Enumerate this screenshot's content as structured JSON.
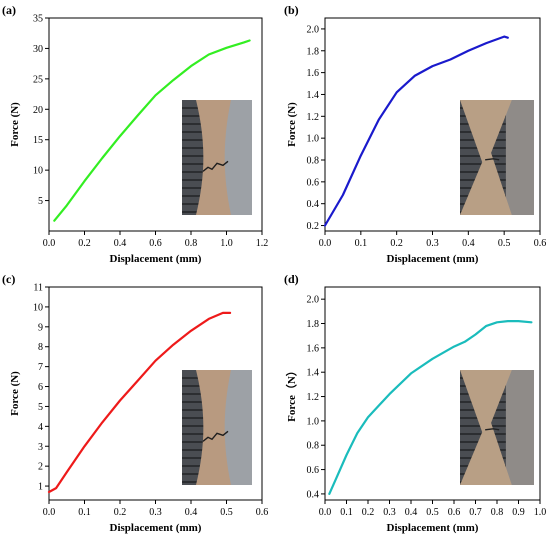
{
  "chart_data": [
    {
      "panel_label": "(a)",
      "type": "line",
      "xlabel": "Displacement (mm)",
      "ylabel": "Force (N)",
      "xlim": [
        0,
        1.2
      ],
      "ylim": [
        0,
        35
      ],
      "xticks": [
        "0.0",
        "0.2",
        "0.4",
        "0.6",
        "0.8",
        "1.0",
        "1.2"
      ],
      "yticks": [
        "5",
        "10",
        "15",
        "20",
        "25",
        "30",
        "35"
      ],
      "grid": false,
      "color": "#33ee22",
      "x": [
        0.03,
        0.1,
        0.2,
        0.3,
        0.4,
        0.5,
        0.6,
        0.7,
        0.8,
        0.9,
        1.0,
        1.1,
        1.13
      ],
      "y": [
        1.7,
        4.2,
        8.2,
        12.0,
        15.6,
        19.0,
        22.3,
        24.8,
        27.1,
        29.0,
        30.1,
        31.0,
        31.3
      ],
      "inset_photo": "fractured strip specimen"
    },
    {
      "panel_label": "(b)",
      "type": "line",
      "xlabel": "Displacement (mm)",
      "ylabel": "Force (N)",
      "xlim": [
        0,
        0.6
      ],
      "ylim": [
        0.15,
        2.1
      ],
      "xticks": [
        "0.0",
        "0.1",
        "0.2",
        "0.3",
        "0.4",
        "0.5",
        "0.6"
      ],
      "yticks": [
        "0.2",
        "0.4",
        "0.6",
        "0.8",
        "1.0",
        "1.2",
        "1.4",
        "1.6",
        "1.8",
        "2.0"
      ],
      "grid": false,
      "color": "#1a1acc",
      "x": [
        0.0,
        0.05,
        0.1,
        0.15,
        0.2,
        0.25,
        0.3,
        0.35,
        0.4,
        0.45,
        0.5,
        0.51
      ],
      "y": [
        0.2,
        0.48,
        0.84,
        1.17,
        1.42,
        1.57,
        1.66,
        1.72,
        1.8,
        1.87,
        1.93,
        1.92
      ],
      "inset_photo": "notched specimen"
    },
    {
      "panel_label": "(c)",
      "type": "line",
      "xlabel": "Displacement (mm)",
      "ylabel": "Force (N)",
      "xlim": [
        0,
        0.6
      ],
      "ylim": [
        0.3,
        11
      ],
      "xticks": [
        "0.0",
        "0.1",
        "0.2",
        "0.3",
        "0.4",
        "0.5",
        "0.6"
      ],
      "yticks": [
        "1",
        "2",
        "3",
        "4",
        "5",
        "6",
        "7",
        "8",
        "9",
        "10",
        "11"
      ],
      "grid": false,
      "color": "#ee1a1a",
      "x": [
        0.0,
        0.02,
        0.05,
        0.1,
        0.15,
        0.2,
        0.25,
        0.3,
        0.35,
        0.4,
        0.45,
        0.49,
        0.51
      ],
      "y": [
        0.7,
        0.9,
        1.7,
        3.0,
        4.2,
        5.3,
        6.3,
        7.3,
        8.1,
        8.8,
        9.4,
        9.7,
        9.7
      ],
      "inset_photo": "fractured strip specimen"
    },
    {
      "panel_label": "(d)",
      "type": "line",
      "xlabel": "Displacement (mm)",
      "ylabel": "Force（N）",
      "xlim": [
        0,
        1.0
      ],
      "ylim": [
        0.35,
        2.1
      ],
      "xticks": [
        "0.0",
        "0.1",
        "0.2",
        "0.3",
        "0.4",
        "0.5",
        "0.6",
        "0.7",
        "0.8",
        "0.9",
        "1.0"
      ],
      "yticks": [
        "0.4",
        "0.6",
        "0.8",
        "1.0",
        "1.2",
        "1.4",
        "1.6",
        "1.8",
        "2.0"
      ],
      "grid": false,
      "color": "#1abcbc",
      "x": [
        0.02,
        0.05,
        0.1,
        0.15,
        0.2,
        0.3,
        0.4,
        0.5,
        0.6,
        0.65,
        0.7,
        0.75,
        0.8,
        0.85,
        0.9,
        0.96
      ],
      "y": [
        0.4,
        0.52,
        0.72,
        0.9,
        1.03,
        1.22,
        1.39,
        1.51,
        1.61,
        1.65,
        1.71,
        1.78,
        1.81,
        1.82,
        1.82,
        1.81
      ],
      "inset_photo": "notched specimen"
    }
  ]
}
